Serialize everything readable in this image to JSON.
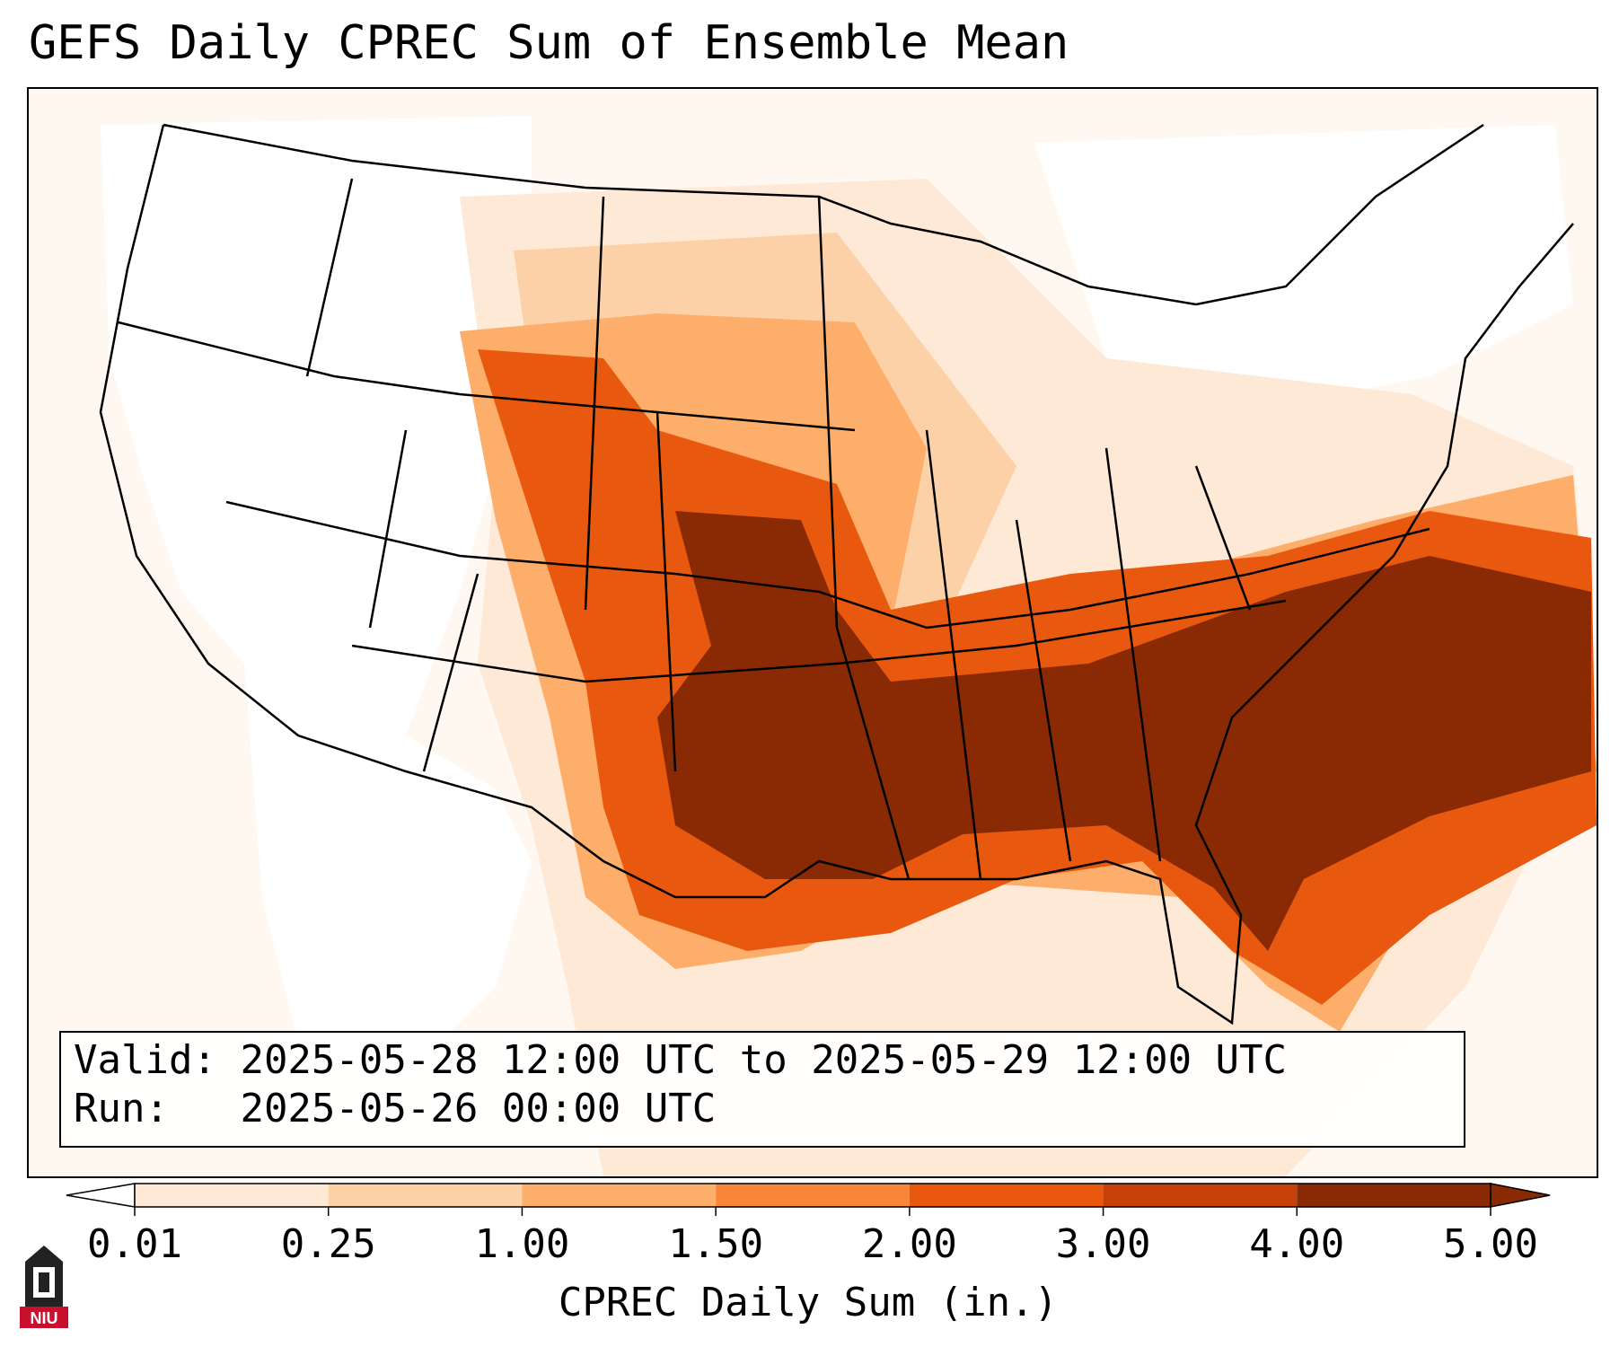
{
  "title": "GEFS Daily CPREC Sum of Ensemble Mean",
  "info": {
    "valid_label": "Valid:",
    "valid_value": "2025-05-28 12:00 UTC to 2025-05-29 12:00 UTC",
    "run_label": "Run:",
    "run_value": "2025-05-26 00:00 UTC"
  },
  "colorbar": {
    "label": "CPREC Daily Sum (in.)",
    "ticks": [
      "0.01",
      "0.25",
      "1.00",
      "1.50",
      "2.00",
      "3.00",
      "4.00",
      "5.00"
    ],
    "colors": [
      "#ffffff",
      "#fde9d6",
      "#fdd1a8",
      "#fdae6b",
      "#f8853a",
      "#e8590f",
      "#c74009",
      "#8a2a04"
    ]
  },
  "map": {
    "region": "Contiguous United States",
    "heaviest_region": "Southeast US and Southern Plains",
    "colors": {
      "background": "#fff8f1",
      "land_dry": "#ffffff",
      "light": "#fde9d6",
      "moderate": "#fdae6b",
      "heavy": "#e8590f",
      "extreme": "#8a2a04",
      "borders": "#000000"
    }
  },
  "logo": {
    "text": "NIU",
    "color": "#c8102e"
  }
}
